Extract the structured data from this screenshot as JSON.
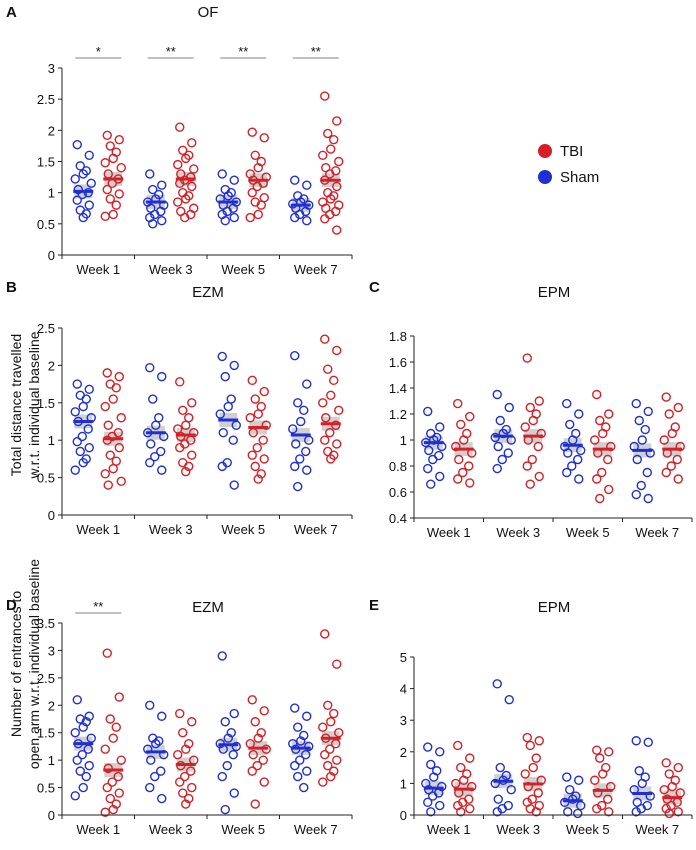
{
  "colors": {
    "tbi": "#d61f26",
    "sham": "#1f2fd6",
    "mean_band": "#c8c8c8",
    "sig_line": "#9a9a9a",
    "axis": "#222222"
  },
  "legend": {
    "tbi_label": "TBI",
    "sham_label": "Sham"
  },
  "ylabel_shared_top": [
    "Total distance travelled",
    "w.r.t. individual baseline"
  ],
  "ylabel_shared_bottom": [
    "Number of entrances to",
    "open arm w.r.t. individual baseline"
  ],
  "chart_data": [
    {
      "panel": "A",
      "title": "OF",
      "type": "scatter",
      "categories": [
        "Week 1",
        "Week 3",
        "Week 5",
        "Week 7"
      ],
      "ylim": [
        0,
        3
      ],
      "yticks": [
        0,
        0.5,
        1,
        1.5,
        2,
        2.5,
        3
      ],
      "ytick_labels": [
        "0",
        "0.5",
        "1",
        "1.5",
        "2",
        "2.5",
        "3"
      ],
      "significance": [
        {
          "week": 0,
          "label": "*"
        },
        {
          "week": 1,
          "label": "**"
        },
        {
          "week": 2,
          "label": "**"
        },
        {
          "week": 3,
          "label": "**"
        }
      ],
      "series": [
        {
          "name": "Sham",
          "means": [
            1.02,
            0.85,
            0.85,
            0.8
          ],
          "points": [
            [
              1.77,
              1.6,
              1.43,
              1.35,
              1.3,
              1.22,
              1.15,
              1.05,
              1.0,
              0.97,
              0.88,
              0.8,
              0.72,
              0.66,
              0.6
            ],
            [
              1.3,
              1.12,
              1.05,
              0.97,
              0.9,
              0.85,
              0.8,
              0.75,
              0.7,
              0.65,
              0.6,
              0.55,
              0.5
            ],
            [
              1.3,
              1.2,
              1.05,
              1.0,
              0.95,
              0.9,
              0.85,
              0.8,
              0.75,
              0.7,
              0.65,
              0.6,
              0.55
            ],
            [
              1.2,
              1.12,
              0.95,
              0.9,
              0.85,
              0.82,
              0.8,
              0.75,
              0.7,
              0.65,
              0.6,
              0.55
            ]
          ]
        },
        {
          "name": "TBI",
          "means": [
            1.22,
            1.22,
            1.2,
            1.2
          ],
          "points": [
            [
              1.92,
              1.85,
              1.75,
              1.65,
              1.55,
              1.48,
              1.4,
              1.3,
              1.22,
              1.15,
              1.05,
              0.98,
              0.9,
              0.8,
              0.65,
              0.62
            ],
            [
              2.05,
              1.8,
              1.68,
              1.6,
              1.55,
              1.45,
              1.38,
              1.3,
              1.25,
              1.2,
              1.15,
              1.1,
              1.0,
              0.95,
              0.9,
              0.85,
              0.75,
              0.7,
              0.65,
              0.6
            ],
            [
              1.97,
              1.88,
              1.6,
              1.5,
              1.4,
              1.3,
              1.25,
              1.2,
              1.15,
              1.1,
              1.0,
              0.92,
              0.85,
              0.8,
              0.65,
              0.6
            ],
            [
              2.55,
              2.15,
              1.95,
              1.85,
              1.7,
              1.6,
              1.5,
              1.4,
              1.35,
              1.3,
              1.2,
              1.1,
              1.0,
              0.95,
              0.9,
              0.85,
              0.8,
              0.75,
              0.7,
              0.65,
              0.58,
              0.4
            ]
          ]
        }
      ]
    },
    {
      "panel": "B",
      "title": "EZM",
      "type": "scatter",
      "categories": [
        "Week 1",
        "Week 3",
        "Week 5",
        "Week 7"
      ],
      "ylim": [
        0,
        2.5
      ],
      "yticks": [
        0,
        0.5,
        1,
        1.5,
        2,
        2.5
      ],
      "ytick_labels": [
        "0",
        "0.5",
        "1",
        "1.5",
        "2",
        "2.5"
      ],
      "significance": [],
      "series": [
        {
          "name": "Sham",
          "means": [
            1.25,
            1.1,
            1.27,
            1.07
          ],
          "points": [
            [
              1.75,
              1.68,
              1.6,
              1.55,
              1.45,
              1.38,
              1.3,
              1.25,
              1.15,
              1.05,
              0.98,
              0.9,
              0.85,
              0.75,
              0.7,
              0.6
            ],
            [
              1.97,
              1.85,
              1.55,
              1.3,
              1.2,
              1.1,
              1.05,
              0.95,
              0.85,
              0.78,
              0.7,
              0.6
            ],
            [
              2.12,
              2.0,
              1.85,
              1.55,
              1.45,
              1.35,
              1.2,
              1.1,
              1.0,
              0.7,
              0.65,
              0.4
            ],
            [
              2.13,
              1.75,
              1.5,
              1.4,
              1.25,
              1.15,
              1.0,
              0.95,
              0.85,
              0.75,
              0.65,
              0.6,
              0.38
            ]
          ]
        },
        {
          "name": "TBI",
          "means": [
            1.02,
            1.07,
            1.17,
            1.22
          ],
          "points": [
            [
              1.9,
              1.85,
              1.75,
              1.7,
              1.55,
              1.45,
              1.3,
              1.2,
              1.1,
              1.05,
              1.0,
              0.9,
              0.8,
              0.72,
              0.62,
              0.55,
              0.45,
              0.4
            ],
            [
              1.78,
              1.5,
              1.4,
              1.3,
              1.2,
              1.15,
              1.1,
              1.05,
              1.0,
              0.95,
              0.9,
              0.8,
              0.7,
              0.65,
              0.58
            ],
            [
              1.8,
              1.65,
              1.55,
              1.45,
              1.35,
              1.3,
              1.2,
              1.1,
              1.0,
              0.9,
              0.8,
              0.75,
              0.65,
              0.55,
              0.48
            ],
            [
              2.35,
              2.2,
              1.95,
              1.8,
              1.6,
              1.5,
              1.4,
              1.3,
              1.2,
              1.1,
              1.0,
              0.95,
              0.85,
              0.8,
              0.75
            ]
          ]
        }
      ]
    },
    {
      "panel": "C",
      "title": "EPM",
      "type": "scatter",
      "categories": [
        "Week 1",
        "Week 3",
        "Week 5",
        "Week 7"
      ],
      "ylim": [
        0.4,
        1.8
      ],
      "yticks": [
        0.4,
        0.6,
        0.8,
        1,
        1.2,
        1.4,
        1.6,
        1.8
      ],
      "ytick_labels": [
        "0.4",
        "0.6",
        "0.8",
        "1",
        "1.2",
        "1.4",
        "1.6",
        "1.8"
      ],
      "significance": [],
      "series": [
        {
          "name": "Sham",
          "means": [
            0.98,
            1.03,
            0.96,
            0.92
          ],
          "points": [
            [
              1.22,
              1.1,
              1.05,
              1.02,
              1.0,
              0.98,
              0.95,
              0.92,
              0.88,
              0.85,
              0.78,
              0.72,
              0.66
            ],
            [
              1.35,
              1.25,
              1.15,
              1.08,
              1.05,
              1.02,
              1.0,
              0.95,
              0.9,
              0.85,
              0.78
            ],
            [
              1.28,
              1.2,
              1.12,
              1.05,
              1.0,
              0.95,
              0.92,
              0.9,
              0.85,
              0.8,
              0.75,
              0.7
            ],
            [
              1.28,
              1.22,
              1.15,
              1.08,
              1.0,
              0.95,
              0.9,
              0.85,
              0.75,
              0.65,
              0.58,
              0.55
            ]
          ]
        },
        {
          "name": "TBI",
          "means": [
            0.93,
            1.03,
            0.93,
            0.93
          ],
          "points": [
            [
              1.28,
              1.18,
              1.12,
              1.05,
              1.0,
              0.95,
              0.9,
              0.85,
              0.8,
              0.75,
              0.7,
              0.67
            ],
            [
              1.63,
              1.3,
              1.25,
              1.2,
              1.15,
              1.1,
              1.05,
              1.0,
              0.95,
              0.85,
              0.8,
              0.72,
              0.66
            ],
            [
              1.35,
              1.2,
              1.15,
              1.1,
              1.05,
              1.0,
              0.95,
              0.9,
              0.85,
              0.75,
              0.7,
              0.62,
              0.55
            ],
            [
              1.33,
              1.25,
              1.2,
              1.1,
              1.05,
              1.0,
              0.95,
              0.9,
              0.85,
              0.8,
              0.75,
              0.7
            ]
          ]
        }
      ]
    },
    {
      "panel": "D",
      "title": "EZM",
      "type": "scatter",
      "categories": [
        "Week 1",
        "Week 3",
        "Week 5",
        "Week 7"
      ],
      "ylim": [
        0,
        3.5
      ],
      "yticks": [
        0,
        0.5,
        1,
        1.5,
        2,
        2.5,
        3,
        3.5
      ],
      "ytick_labels": [
        "0",
        "0.5",
        "1",
        "1.5",
        "2",
        "2.5",
        "3",
        "3.5"
      ],
      "significance": [
        {
          "week": 0,
          "label": "**"
        }
      ],
      "series": [
        {
          "name": "Sham",
          "means": [
            1.3,
            1.15,
            1.28,
            1.22
          ],
          "points": [
            [
              2.1,
              1.8,
              1.75,
              1.7,
              1.6,
              1.5,
              1.4,
              1.3,
              1.2,
              1.1,
              1.0,
              0.9,
              0.8,
              0.7,
              0.5,
              0.35
            ],
            [
              2.0,
              1.8,
              1.4,
              1.35,
              1.3,
              1.2,
              1.1,
              1.0,
              0.8,
              0.7,
              0.5,
              0.3
            ],
            [
              2.9,
              1.85,
              1.7,
              1.5,
              1.4,
              1.3,
              1.25,
              1.2,
              1.1,
              0.9,
              0.7,
              0.4,
              0.1
            ],
            [
              1.95,
              1.8,
              1.6,
              1.45,
              1.35,
              1.3,
              1.25,
              1.2,
              1.1,
              1.0,
              0.9,
              0.8,
              0.7,
              0.5
            ]
          ]
        },
        {
          "name": "TBI",
          "means": [
            0.82,
            0.92,
            1.22,
            1.4
          ],
          "points": [
            [
              2.95,
              2.15,
              1.75,
              1.6,
              1.4,
              1.2,
              1.0,
              0.85,
              0.7,
              0.6,
              0.5,
              0.4,
              0.3,
              0.2,
              0.1,
              0.05
            ],
            [
              1.85,
              1.7,
              1.5,
              1.3,
              1.2,
              1.1,
              1.0,
              0.9,
              0.8,
              0.7,
              0.6,
              0.5,
              0.4,
              0.3,
              0.2
            ],
            [
              2.1,
              1.9,
              1.7,
              1.5,
              1.4,
              1.3,
              1.2,
              1.1,
              1.0,
              0.9,
              0.8,
              0.6,
              0.2
            ],
            [
              3.3,
              2.75,
              2.0,
              1.85,
              1.7,
              1.6,
              1.5,
              1.4,
              1.3,
              1.2,
              1.1,
              1.0,
              0.9,
              0.8,
              0.7,
              0.6
            ]
          ]
        }
      ]
    },
    {
      "panel": "E",
      "title": "EPM",
      "type": "scatter",
      "categories": [
        "Week 1",
        "Week 3",
        "Week 5",
        "Week 7"
      ],
      "ylim": [
        0,
        5
      ],
      "yticks": [
        0,
        1,
        2,
        3,
        4,
        5
      ],
      "ytick_labels": [
        "0",
        "1",
        "2",
        "3",
        "4",
        "5"
      ],
      "significance": [],
      "series": [
        {
          "name": "Sham",
          "means": [
            0.85,
            1.07,
            0.45,
            0.68
          ],
          "points": [
            [
              2.15,
              2.0,
              1.6,
              1.4,
              1.2,
              1.0,
              0.9,
              0.8,
              0.7,
              0.6,
              0.4,
              0.3,
              0.1
            ],
            [
              4.15,
              3.65,
              1.5,
              1.25,
              1.1,
              1.0,
              0.8,
              0.5,
              0.3,
              0.2,
              0.1
            ],
            [
              1.2,
              1.1,
              0.8,
              0.6,
              0.5,
              0.4,
              0.3,
              0.1,
              0.05
            ],
            [
              2.35,
              2.3,
              1.4,
              1.2,
              1.0,
              0.8,
              0.6,
              0.4,
              0.3,
              0.2,
              0.1
            ]
          ]
        },
        {
          "name": "TBI",
          "means": [
            0.82,
            0.98,
            0.78,
            0.55
          ],
          "points": [
            [
              2.2,
              1.8,
              1.5,
              1.3,
              1.1,
              1.0,
              0.9,
              0.7,
              0.5,
              0.4,
              0.3,
              0.2,
              0.1
            ],
            [
              2.45,
              2.35,
              2.2,
              1.8,
              1.5,
              1.3,
              1.1,
              0.9,
              0.7,
              0.5,
              0.4,
              0.3,
              0.2,
              0.1
            ],
            [
              2.05,
              2.0,
              1.8,
              1.5,
              1.3,
              1.1,
              0.9,
              0.7,
              0.5,
              0.3,
              0.2,
              0.1
            ],
            [
              1.65,
              1.5,
              1.3,
              1.1,
              0.9,
              0.8,
              0.7,
              0.5,
              0.4,
              0.3,
              0.2,
              0.1,
              0.05
            ]
          ]
        }
      ]
    }
  ]
}
